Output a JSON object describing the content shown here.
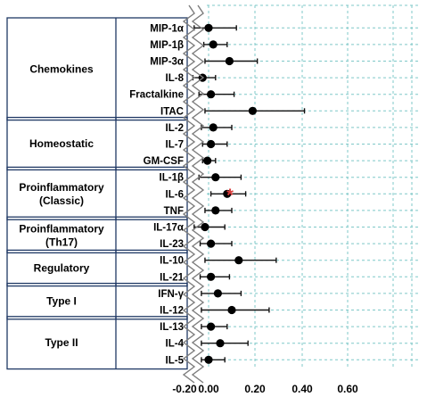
{
  "chart_data": {
    "type": "scatter",
    "style": "forest-plot with horizontal error bars",
    "xlim": [
      -0.25,
      0.65
    ],
    "xticks": [
      -0.2,
      0.0,
      0.2,
      0.4,
      0.6
    ],
    "xtick_labels": [
      "-0.20",
      "0.00",
      "0.20",
      "0.40",
      "0.60"
    ],
    "grid": "dashed",
    "grid_color": "#7fc8c8",
    "point_color": "#000000",
    "annotation": {
      "text": "*",
      "row": "IL-6",
      "color": "#d83a3a"
    },
    "groups": [
      {
        "label": "Chemokines",
        "label_lines": [
          "Chemokines"
        ],
        "rows": [
          "MIP-1α",
          "MIP-1β",
          "MIP-3α",
          "IL-8",
          "Fractalkine",
          "ITAC"
        ]
      },
      {
        "label": "Homeostatic",
        "label_lines": [
          "Homeostatic"
        ],
        "rows": [
          "IL-2",
          "IL-7",
          "GM-CSF"
        ]
      },
      {
        "label": "Proinflammatory (Classic)",
        "label_lines": [
          "Proinflammatory",
          "(Classic)"
        ],
        "rows": [
          "IL-1β",
          "IL-6",
          "TNF"
        ]
      },
      {
        "label": "Proinflammatory (Th17)",
        "label_lines": [
          "Proinflammatory",
          "(Th17)"
        ],
        "rows": [
          "IL-17α",
          "IL-23"
        ]
      },
      {
        "label": "Regulatory",
        "label_lines": [
          "Regulatory"
        ],
        "rows": [
          "IL-10",
          "IL-21"
        ]
      },
      {
        "label": "Type I",
        "label_lines": [
          "Type I"
        ],
        "rows": [
          "IFN-γ",
          "IL-12"
        ]
      },
      {
        "label": "Type II",
        "label_lines": [
          "Type II"
        ],
        "rows": [
          "IL-13",
          "IL-4",
          "IL-5"
        ]
      }
    ],
    "points": [
      {
        "cytokine": "MIP-1α",
        "estimate": 0.0,
        "ci": [
          -0.12,
          0.12
        ]
      },
      {
        "cytokine": "MIP-1β",
        "estimate": 0.02,
        "ci": [
          -0.04,
          0.08
        ]
      },
      {
        "cytokine": "MIP-3α",
        "estimate": 0.09,
        "ci": [
          -0.03,
          0.21
        ]
      },
      {
        "cytokine": "IL-8",
        "estimate": -0.05,
        "ci": [
          -0.13,
          0.03
        ]
      },
      {
        "cytokine": "Fractalkine",
        "estimate": 0.01,
        "ci": [
          -0.08,
          0.11
        ]
      },
      {
        "cytokine": "ITAC",
        "estimate": 0.19,
        "ci": [
          -0.03,
          0.41
        ]
      },
      {
        "cytokine": "IL-2",
        "estimate": 0.02,
        "ci": [
          -0.06,
          0.1
        ]
      },
      {
        "cytokine": "IL-7",
        "estimate": 0.01,
        "ci": [
          -0.05,
          0.08
        ]
      },
      {
        "cytokine": "GM-CSF",
        "estimate": -0.01,
        "ci": [
          -0.05,
          0.03
        ]
      },
      {
        "cytokine": "IL-1β",
        "estimate": 0.03,
        "ci": [
          -0.08,
          0.14
        ]
      },
      {
        "cytokine": "IL-6",
        "estimate": 0.08,
        "ci": [
          0.01,
          0.16
        ]
      },
      {
        "cytokine": "TNF",
        "estimate": 0.03,
        "ci": [
          -0.03,
          0.1
        ]
      },
      {
        "cytokine": "IL-17α",
        "estimate": -0.03,
        "ci": [
          -0.12,
          0.07
        ]
      },
      {
        "cytokine": "IL-23",
        "estimate": 0.01,
        "ci": [
          -0.07,
          0.1
        ]
      },
      {
        "cytokine": "IL-10",
        "estimate": 0.13,
        "ci": [
          -0.03,
          0.29
        ]
      },
      {
        "cytokine": "IL-21",
        "estimate": 0.01,
        "ci": [
          -0.07,
          0.09
        ]
      },
      {
        "cytokine": "IFN-γ",
        "estimate": 0.04,
        "ci": [
          -0.06,
          0.14
        ]
      },
      {
        "cytokine": "IL-12",
        "estimate": 0.1,
        "ci": [
          -0.06,
          0.26
        ]
      },
      {
        "cytokine": "IL-13",
        "estimate": 0.01,
        "ci": [
          -0.06,
          0.08
        ]
      },
      {
        "cytokine": "IL-4",
        "estimate": 0.05,
        "ci": [
          -0.06,
          0.17
        ]
      },
      {
        "cytokine": "IL-5",
        "estimate": 0.0,
        "ci": [
          -0.06,
          0.07
        ]
      }
    ]
  }
}
